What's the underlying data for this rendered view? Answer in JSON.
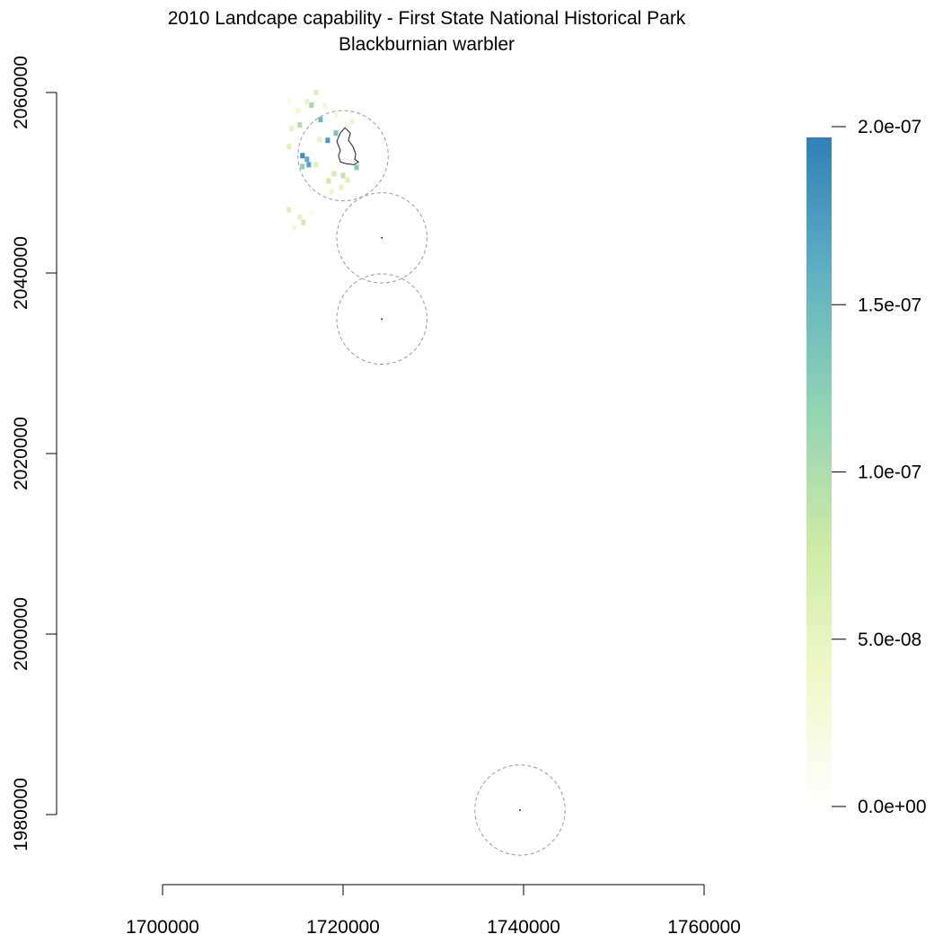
{
  "title": "2010 Landcape capability - First State National Historical Park",
  "subtitle": "Blackburnian warbler",
  "chart_data": {
    "type": "heatmap",
    "title": "2010 Landcape capability - First State National Historical Park",
    "subtitle": "Blackburnian warbler",
    "xlabel": "",
    "ylabel": "",
    "x_ticks": [
      1700000,
      1720000,
      1740000,
      1760000
    ],
    "x_tick_labels": [
      "1700000",
      "1720000",
      "1740000",
      "1760000"
    ],
    "y_ticks": [
      1980000,
      2000000,
      2020000,
      2040000,
      2060000
    ],
    "y_tick_labels": [
      "1980000",
      "2000000",
      "2020000",
      "2040000",
      "2060000"
    ],
    "xlim": [
      1700000,
      1760000
    ],
    "ylim": [
      1980000,
      2060000
    ],
    "grid": false,
    "legend": {
      "placement": "right",
      "range": [
        0,
        2e-07
      ],
      "ticks": [
        0,
        5e-08,
        1e-07,
        1.5e-07,
        2e-07
      ],
      "tick_labels": [
        "0.0e+00",
        "5.0e-08",
        "1.0e-07",
        "1.5e-07",
        "2.0e-07"
      ],
      "colors": [
        "#ffffff",
        "#f0f8c8",
        "#cbe9a6",
        "#8fd3b5",
        "#5fb0c2",
        "#2f80b8"
      ]
    },
    "buffer_circles": [
      {
        "center": [
          1720000,
          2053000
        ],
        "radius": 5000
      },
      {
        "center": [
          1724300,
          2043900
        ],
        "radius": 5000
      },
      {
        "center": [
          1724300,
          2034900
        ],
        "radius": 5000
      },
      {
        "center": [
          1739600,
          1980500
        ],
        "radius": 5000
      }
    ],
    "park_boundary": [
      [
        1719300,
        2054600
      ],
      [
        1719700,
        2055500
      ],
      [
        1720200,
        2056100
      ],
      [
        1720800,
        2055500
      ],
      [
        1720600,
        2054700
      ],
      [
        1721100,
        2054000
      ],
      [
        1721400,
        2053200
      ],
      [
        1721300,
        2052600
      ],
      [
        1721700,
        2052300
      ],
      [
        1721200,
        2052000
      ],
      [
        1720400,
        2052100
      ],
      [
        1719700,
        2052300
      ],
      [
        1719500,
        2053000
      ],
      [
        1719700,
        2053600
      ],
      [
        1719300,
        2054600
      ]
    ],
    "point_markers": [
      [
        1724300,
        2043900
      ],
      [
        1724300,
        2034900
      ],
      [
        1739600,
        1980500
      ]
    ],
    "raster_cells": [
      [
        1714000,
        2059000,
        2e-08
      ],
      [
        1715000,
        2058000,
        4e-08
      ],
      [
        1716000,
        2059000,
        5e-08
      ],
      [
        1717000,
        2060000,
        6e-08
      ],
      [
        1716500,
        2058600,
        1.1e-07
      ],
      [
        1718000,
        2058500,
        3e-08
      ],
      [
        1717500,
        2057000,
        1.5e-07
      ],
      [
        1715200,
        2056400,
        1e-07
      ],
      [
        1714300,
        2056000,
        5e-08
      ],
      [
        1714000,
        2054000,
        6e-08
      ],
      [
        1715500,
        2053000,
        1.9e-07
      ],
      [
        1716000,
        2052600,
        1.6e-07
      ],
      [
        1716200,
        2052000,
        1.7e-07
      ],
      [
        1715500,
        2051800,
        1.2e-07
      ],
      [
        1717000,
        2052000,
        6e-08
      ],
      [
        1717400,
        2054800,
        5e-08
      ],
      [
        1718300,
        2054700,
        1.8e-07
      ],
      [
        1719200,
        2055500,
        1.4e-07
      ],
      [
        1719000,
        2051000,
        7e-08
      ],
      [
        1718400,
        2050200,
        8e-08
      ],
      [
        1719800,
        2049500,
        5e-08
      ],
      [
        1720500,
        2050300,
        6e-08
      ],
      [
        1718700,
        2049000,
        4e-08
      ],
      [
        1714000,
        2047000,
        6e-08
      ],
      [
        1715200,
        2046200,
        5e-08
      ],
      [
        1715600,
        2045600,
        7e-08
      ],
      [
        1714600,
        2045000,
        3e-08
      ],
      [
        1716500,
        2046700,
        2e-08
      ],
      [
        1721500,
        2051700,
        1.3e-07
      ],
      [
        1721000,
        2056800,
        4e-08
      ],
      [
        1719200,
        2057400,
        3e-08
      ],
      [
        1720000,
        2050800,
        9e-08
      ]
    ]
  }
}
